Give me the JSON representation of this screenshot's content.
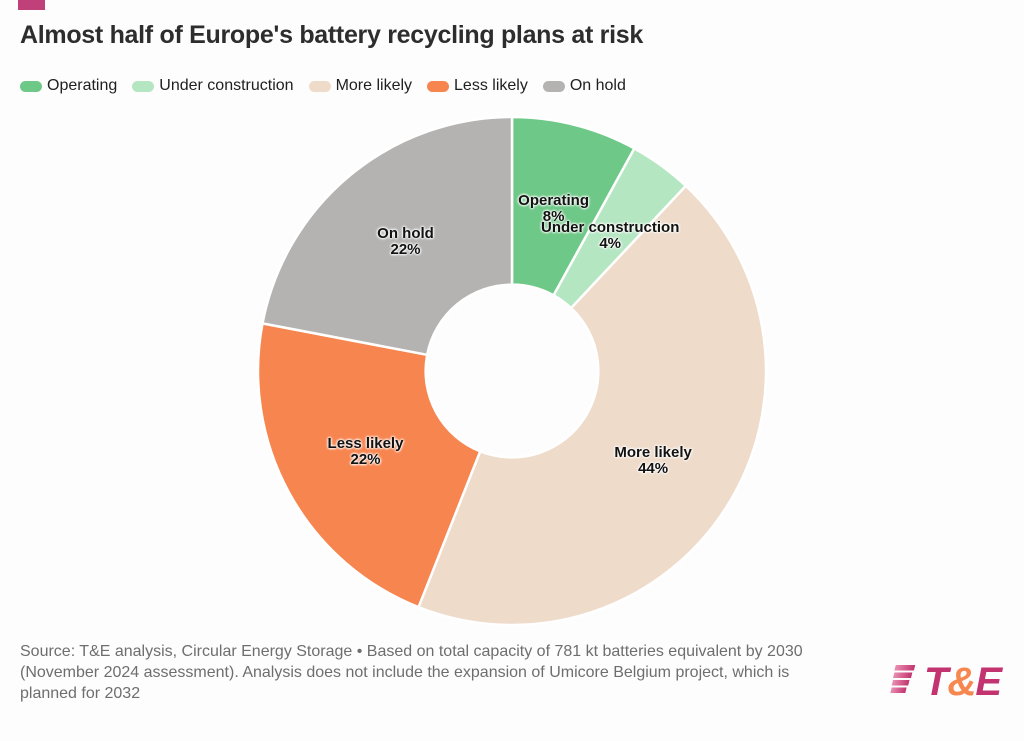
{
  "page": {
    "background": "#fdfdfd",
    "accent_color": "#c0407a"
  },
  "header": {
    "title": "Almost half of Europe's battery recycling plans at risk"
  },
  "chart_data": {
    "type": "donut",
    "title": "Almost half of Europe's battery recycling plans at risk",
    "categories": [
      "Operating",
      "Under construction",
      "More likely",
      "Less likely",
      "On hold"
    ],
    "values": [
      8,
      4,
      44,
      22,
      22
    ],
    "unit": "%",
    "colors": [
      "#6ec887",
      "#b5e6c2",
      "#eedbca",
      "#f7854f",
      "#b4b3b2"
    ],
    "slice_value_labels": [
      "8%",
      "4%",
      "44%",
      "22%",
      "22%"
    ],
    "inner_radius_ratio": 0.34,
    "start_angle_deg": 0,
    "direction": "clockwise",
    "slice_gap_color": "#ffffff",
    "legend_position": "top-left",
    "label_color": "#121212",
    "label_radius_ratio": 0.658
  },
  "source": {
    "lines": [
      "Source: T&E analysis, Circular Energy Storage • Based on total capacity of 781 kt batteries equivalent by 2030",
      "(November 2024 assessment). Analysis does not include the expansion of Umicore Belgium project, which is",
      "planned for 2032"
    ]
  },
  "logo": {
    "letters": [
      "T",
      "&",
      "E"
    ],
    "letter_colors": [
      "#c2336f",
      "#f6874f",
      "#c2336f"
    ],
    "stripe_gradient": [
      "#e98fb2",
      "#c2336f"
    ]
  }
}
